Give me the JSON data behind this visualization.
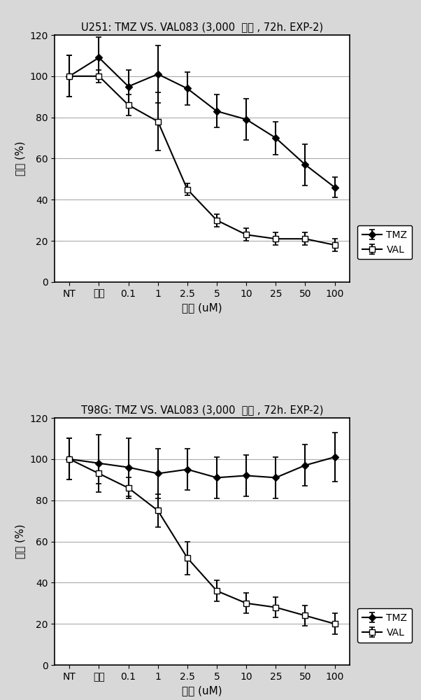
{
  "chart1": {
    "title": "U251: TMZ VS. VAL083 (3,000  细胞 , 72h. EXP-2)",
    "x_labels": [
      "NT",
      "溶剂",
      "0.1",
      "1",
      "2.5",
      "5",
      "10",
      "25",
      "50",
      "100"
    ],
    "TMZ_y": [
      100,
      109,
      95,
      101,
      94,
      83,
      79,
      70,
      57,
      46
    ],
    "TMZ_err": [
      10,
      10,
      8,
      14,
      8,
      8,
      10,
      8,
      10,
      5
    ],
    "VAL_y": [
      100,
      100,
      86,
      78,
      45,
      30,
      23,
      21,
      21,
      18
    ],
    "VAL_err": [
      10,
      3,
      5,
      14,
      3,
      3,
      3,
      3,
      3,
      3
    ]
  },
  "chart2": {
    "title": "T98G: TMZ VS. VAL083 (3,000  细胞 , 72h. EXP-2)",
    "x_labels": [
      "NT",
      "溶剂",
      "0.1",
      "1",
      "2.5",
      "5",
      "10",
      "25",
      "50",
      "100"
    ],
    "TMZ_y": [
      100,
      98,
      96,
      93,
      95,
      91,
      92,
      91,
      97,
      101
    ],
    "TMZ_err": [
      10,
      14,
      14,
      12,
      10,
      10,
      10,
      10,
      10,
      12
    ],
    "VAL_y": [
      100,
      93,
      86,
      75,
      52,
      36,
      30,
      28,
      24,
      20
    ],
    "VAL_err": [
      10,
      5,
      5,
      8,
      8,
      5,
      5,
      5,
      5,
      5
    ]
  },
  "ylabel": "生长 (%)",
  "xlabel": "浓度 (uM)",
  "ylim": [
    0,
    120
  ],
  "yticks": [
    0,
    20,
    40,
    60,
    80,
    100,
    120
  ],
  "line_color": "#000000",
  "bg_color": "#d8d8d8",
  "plot_bg": "#ffffff",
  "legend_TMZ": "TMZ",
  "legend_VAL": "VAL",
  "title_fontsize": 10.5,
  "label_fontsize": 11,
  "tick_fontsize": 10,
  "legend_fontsize": 10
}
